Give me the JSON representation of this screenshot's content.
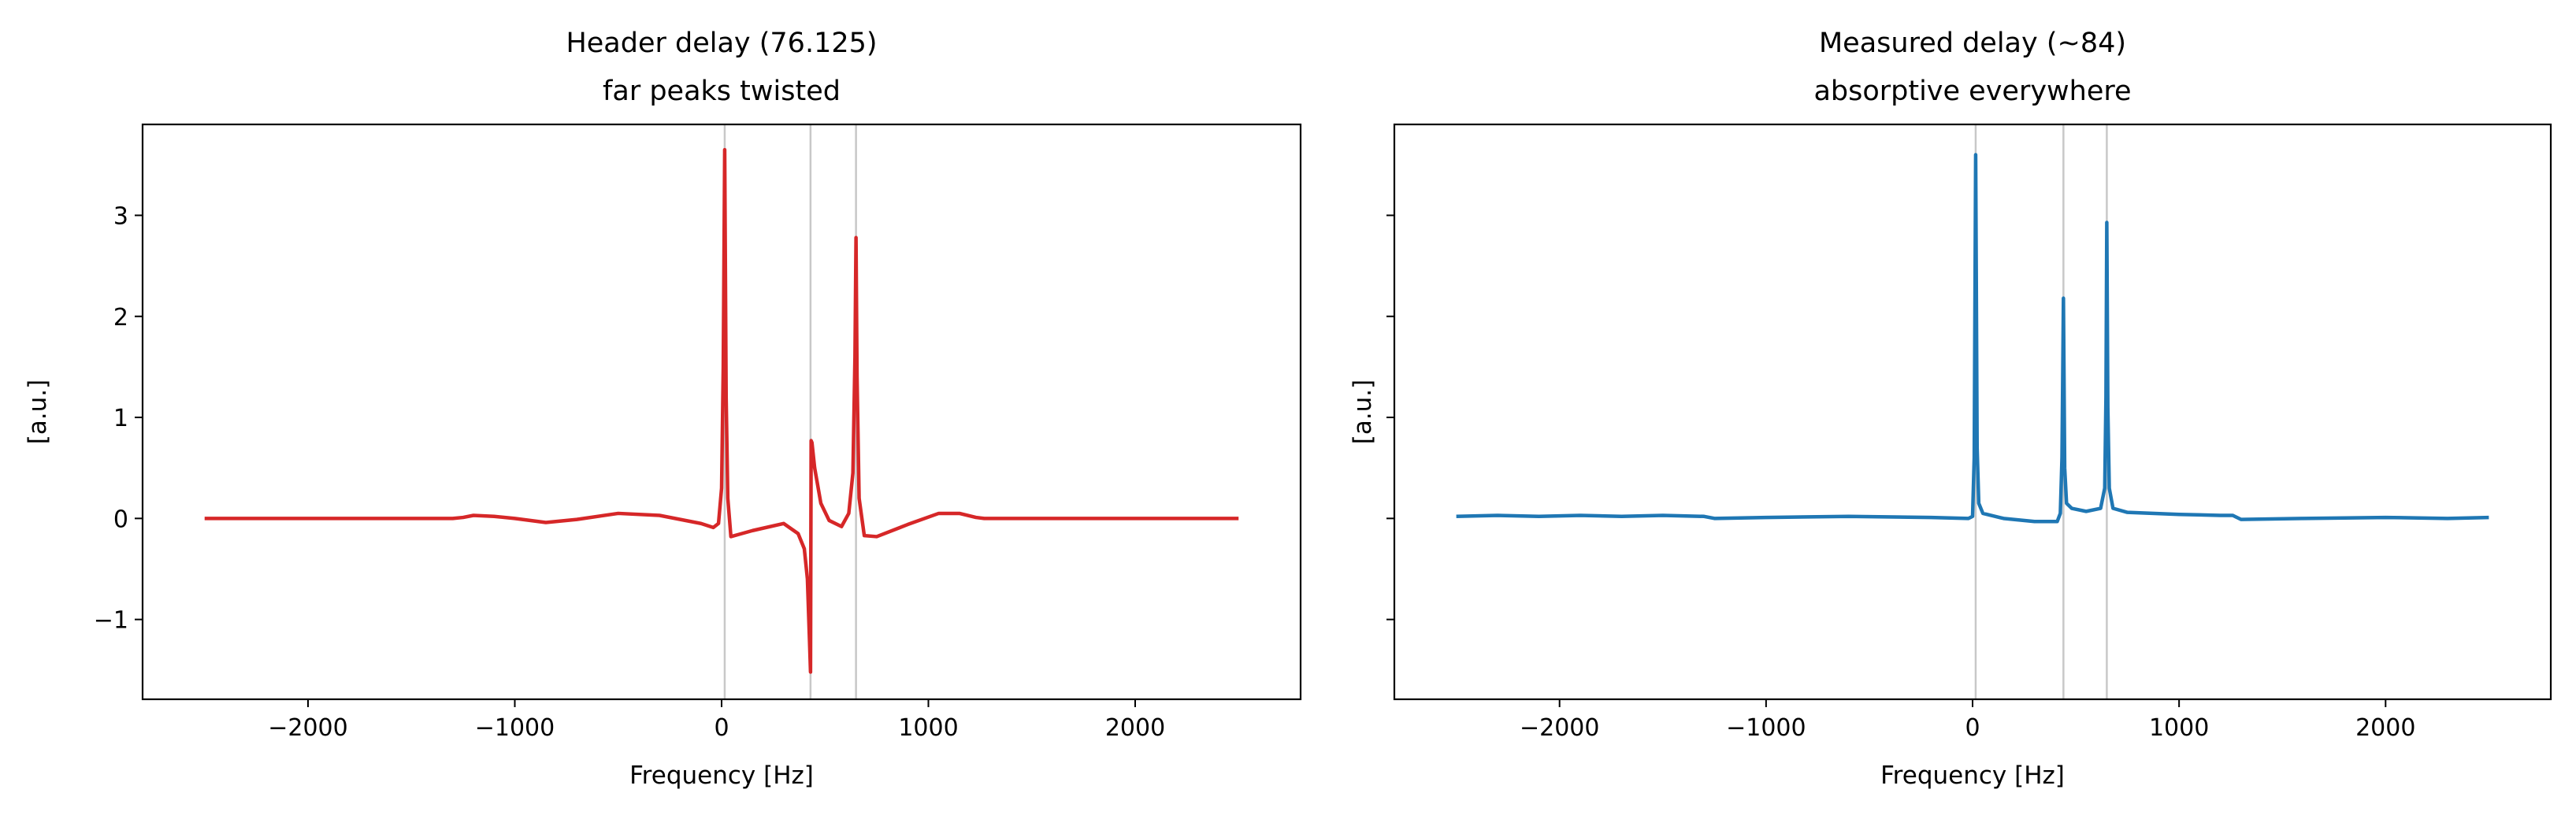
{
  "chart_data": [
    {
      "type": "line",
      "title": "Header delay (76.125)",
      "subtitle": "far peaks twisted",
      "x_label": "Frequency [Hz]",
      "y_label": "[a.u.]",
      "color": "#d62728",
      "x": [
        -2500,
        -1300,
        -1250,
        -1200,
        -1100,
        -1000,
        -850,
        -700,
        -500,
        -300,
        -100,
        -40,
        -15,
        0,
        8,
        15,
        22,
        30,
        45,
        80,
        150,
        300,
        370,
        400,
        415,
        425,
        430,
        433,
        437,
        450,
        480,
        520,
        580,
        615,
        635,
        645,
        650,
        655,
        665,
        690,
        750,
        900,
        1050,
        1150,
        1230,
        1270,
        2500
      ],
      "values": [
        0,
        0,
        0.01,
        0.03,
        0.02,
        0,
        -0.04,
        -0.01,
        0.05,
        0.03,
        -0.05,
        -0.09,
        -0.05,
        0.3,
        1.5,
        3.65,
        1.2,
        0.2,
        -0.18,
        -0.16,
        -0.12,
        -0.05,
        -0.15,
        -0.3,
        -0.6,
        -1.2,
        -1.52,
        0.77,
        0.75,
        0.5,
        0.15,
        -0.02,
        -0.08,
        0.05,
        0.45,
        1.6,
        2.78,
        1.4,
        0.2,
        -0.17,
        -0.18,
        -0.06,
        0.05,
        0.05,
        0.01,
        0,
        0
      ],
      "vlines": [
        15,
        430,
        650
      ],
      "xlim": [
        -2800,
        2800
      ],
      "ylim": [
        -1.79,
        3.9
      ],
      "xticks": [
        {
          "value": -2000,
          "label": "−2000"
        },
        {
          "value": -1000,
          "label": "−1000"
        },
        0,
        1000,
        2000
      ],
      "yticks": [
        {
          "value": -1,
          "label": "−1"
        },
        0,
        1,
        2,
        3
      ],
      "ytick_labels": true
    },
    {
      "type": "line",
      "title": "Measured delay (~84)",
      "subtitle": "absorptive everywhere",
      "x_label": "Frequency [Hz]",
      "y_label": "[a.u.]",
      "color": "#1f77b4",
      "x": [
        -2500,
        -2300,
        -2100,
        -1900,
        -1700,
        -1500,
        -1300,
        -1250,
        -1000,
        -600,
        -200,
        -20,
        0,
        8,
        15,
        22,
        30,
        50,
        150,
        300,
        410,
        425,
        433,
        440,
        446,
        455,
        480,
        550,
        620,
        640,
        646,
        650,
        655,
        662,
        680,
        750,
        1000,
        1200,
        1260,
        1300,
        1600,
        2000,
        2300,
        2500
      ],
      "values": [
        0.02,
        0.03,
        0.02,
        0.03,
        0.02,
        0.03,
        0.02,
        0.0,
        0.01,
        0.02,
        0.01,
        0.0,
        0.02,
        0.6,
        3.6,
        0.7,
        0.15,
        0.05,
        0.0,
        -0.03,
        -0.03,
        0.05,
        0.6,
        2.18,
        0.5,
        0.15,
        0.1,
        0.07,
        0.1,
        0.3,
        1.2,
        2.93,
        1.1,
        0.3,
        0.1,
        0.06,
        0.04,
        0.03,
        0.03,
        -0.01,
        0.0,
        0.01,
        0.0,
        0.01
      ],
      "vlines": [
        15,
        440,
        650
      ],
      "xlim": [
        -2800,
        2800
      ],
      "ylim": [
        -1.79,
        3.9
      ],
      "xticks": [
        {
          "value": -2000,
          "label": "−2000"
        },
        {
          "value": -1000,
          "label": "−1000"
        },
        0,
        1000,
        2000
      ],
      "yticks": [
        -1,
        0,
        1,
        2,
        3
      ],
      "ytick_labels": false
    }
  ]
}
